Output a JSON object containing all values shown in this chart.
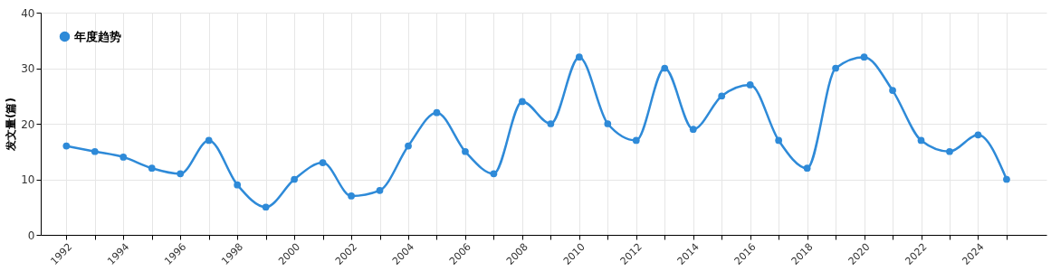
{
  "chart_data": {
    "type": "line",
    "ylabel": "发文量(篇)",
    "x": [
      1992,
      1993,
      1994,
      1995,
      1996,
      1997,
      1998,
      1999,
      2000,
      2001,
      2002,
      2003,
      2004,
      2005,
      2006,
      2007,
      2008,
      2009,
      2010,
      2011,
      2012,
      2013,
      2014,
      2015,
      2016,
      2017,
      2018,
      2019,
      2020,
      2021,
      2022,
      2023,
      2024,
      2025
    ],
    "series": [
      {
        "name": "年度趋势",
        "color": "#2e8ad8",
        "values": [
          16,
          15,
          14,
          12,
          11,
          17,
          9,
          5,
          10,
          13,
          7,
          8,
          16,
          22,
          15,
          11,
          24,
          20,
          32,
          20,
          17,
          30,
          19,
          25,
          27,
          17,
          12,
          30,
          32,
          26,
          17,
          15,
          18,
          10
        ]
      }
    ],
    "xlim": [
      1991.1,
      2026.4
    ],
    "xticks": [
      1992,
      {
        "value": 1993,
        "label": null
      },
      1994,
      {
        "value": 1995,
        "label": null
      },
      1996,
      {
        "value": 1997,
        "label": null
      },
      1998,
      {
        "value": 1999,
        "label": null
      },
      2000,
      {
        "value": 2001,
        "label": null
      },
      2002,
      {
        "value": 2003,
        "label": null
      },
      2004,
      {
        "value": 2005,
        "label": null
      },
      2006,
      {
        "value": 2007,
        "label": null
      },
      2008,
      {
        "value": 2009,
        "label": null
      },
      2010,
      {
        "value": 2011,
        "label": null
      },
      2012,
      {
        "value": 2013,
        "label": null
      },
      2014,
      {
        "value": 2015,
        "label": null
      },
      2016,
      {
        "value": 2017,
        "label": null
      },
      2018,
      {
        "value": 2019,
        "label": null
      },
      2020,
      {
        "value": 2021,
        "label": null
      },
      2022,
      {
        "value": 2023,
        "label": null
      },
      2024,
      {
        "value": 2025,
        "label": null
      }
    ],
    "ylim": [
      0,
      40
    ],
    "yticks": [
      0,
      10,
      20,
      30,
      40
    ],
    "grid": true,
    "legend": "top left",
    "marker": "circle",
    "line_style": "solid"
  }
}
